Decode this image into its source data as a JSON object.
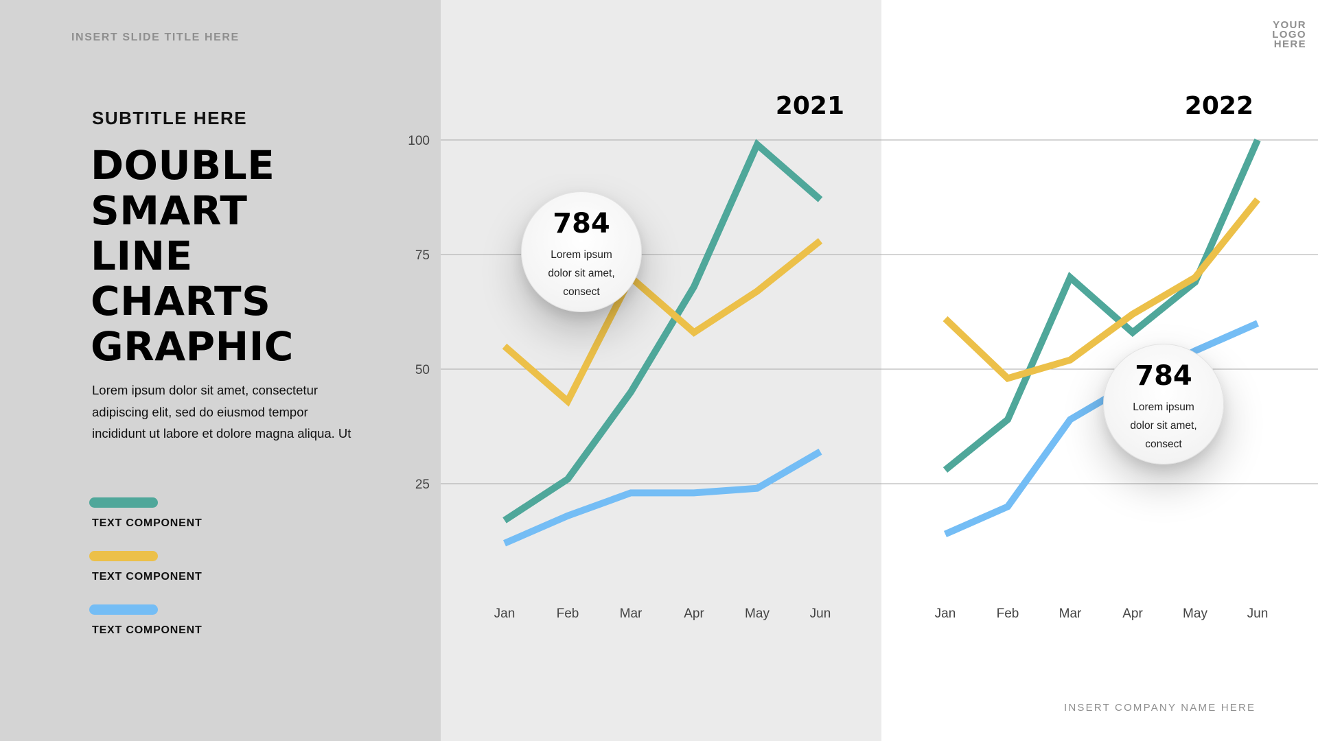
{
  "header": {
    "slide_title": "INSERT SLIDE TITLE HERE",
    "logo_lines": [
      "YOUR",
      "LOGO",
      "HERE"
    ]
  },
  "left": {
    "subtitle": "SUBTITLE HERE",
    "title_lines": [
      "DOUBLE",
      "SMART",
      "LINE",
      "CHARTS",
      "GRAPHIC"
    ],
    "body": "Lorem ipsum dolor sit amet, consectetur adipiscing elit, sed do eiusmod tempor incididunt ut labore et dolore magna aliqua. Ut",
    "legend": [
      {
        "label": "TEXT COMPONENT",
        "color": "#4fa79a"
      },
      {
        "label": "TEXT COMPONENT",
        "color": "#ecc049"
      },
      {
        "label": "TEXT COMPONENT",
        "color": "#74bdf5"
      }
    ]
  },
  "callouts": [
    {
      "value": "784",
      "text_lines": [
        "Lorem ipsum",
        "dolor sit amet,",
        "consect"
      ]
    },
    {
      "value": "784",
      "text_lines": [
        "Lorem ipsum",
        "dolor sit amet,",
        "consect"
      ]
    }
  ],
  "footer": {
    "company": "INSERT COMPANY NAME HERE"
  },
  "colors": {
    "left_panel": "#d4d4d4",
    "middle_panel": "#ebebeb",
    "right_panel": "#ffffff",
    "teal": "#4fa79a",
    "yellow": "#ecc049",
    "blue": "#74bdf5"
  },
  "chart_data": [
    {
      "type": "line",
      "title": "2021",
      "categories": [
        "Jan",
        "Feb",
        "Mar",
        "Apr",
        "May",
        "Jun"
      ],
      "y_ticks": [
        25,
        50,
        75,
        100
      ],
      "ylim": [
        0,
        100
      ],
      "grid": true,
      "series": [
        {
          "color": "#4fa79a",
          "values": [
            17,
            26,
            45,
            68,
            99,
            87
          ]
        },
        {
          "color": "#ecc049",
          "values": [
            55,
            43,
            70,
            58,
            67,
            78
          ]
        },
        {
          "color": "#74bdf5",
          "values": [
            12,
            18,
            23,
            23,
            24,
            32
          ]
        }
      ]
    },
    {
      "type": "line",
      "title": "2022",
      "categories": [
        "Jan",
        "Feb",
        "Mar",
        "Apr",
        "May",
        "Jun"
      ],
      "y_ticks": [
        25,
        50,
        75,
        100
      ],
      "ylim": [
        0,
        100
      ],
      "grid": true,
      "series": [
        {
          "color": "#4fa79a",
          "values": [
            28,
            39,
            70,
            58,
            69,
            100
          ]
        },
        {
          "color": "#ecc049",
          "values": [
            61,
            48,
            52,
            62,
            70,
            87
          ]
        },
        {
          "color": "#74bdf5",
          "values": [
            14,
            20,
            39,
            47,
            54,
            60
          ]
        }
      ]
    }
  ]
}
